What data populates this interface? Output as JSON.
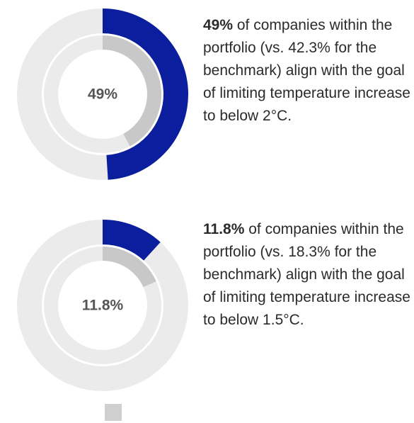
{
  "chart_data": [
    {
      "type": "donut",
      "track_color": "#ebebeb",
      "series": [
        {
          "values": [
            49
          ],
          "value_labels": [
            "49%"
          ],
          "color": "#0b1f9e"
        },
        {
          "values": [
            42.3
          ],
          "color": "#c8c8c8"
        }
      ],
      "caption": "of companies within the portfolio (vs. 42.3% for the benchmark) align with the goal of limiting temperature increase to below 2°C."
    },
    {
      "type": "donut",
      "track_color": "#ebebeb",
      "series": [
        {
          "values": [
            11.8
          ],
          "value_labels": [
            "11.8%"
          ],
          "color": "#0b1f9e"
        },
        {
          "values": [
            18.3
          ],
          "color": "#c8c8c8"
        }
      ],
      "caption": "of companies within the portfolio (vs. 18.3% for the benchmark) align with the goal of limiting temperature increase to below 1.5°C."
    }
  ]
}
